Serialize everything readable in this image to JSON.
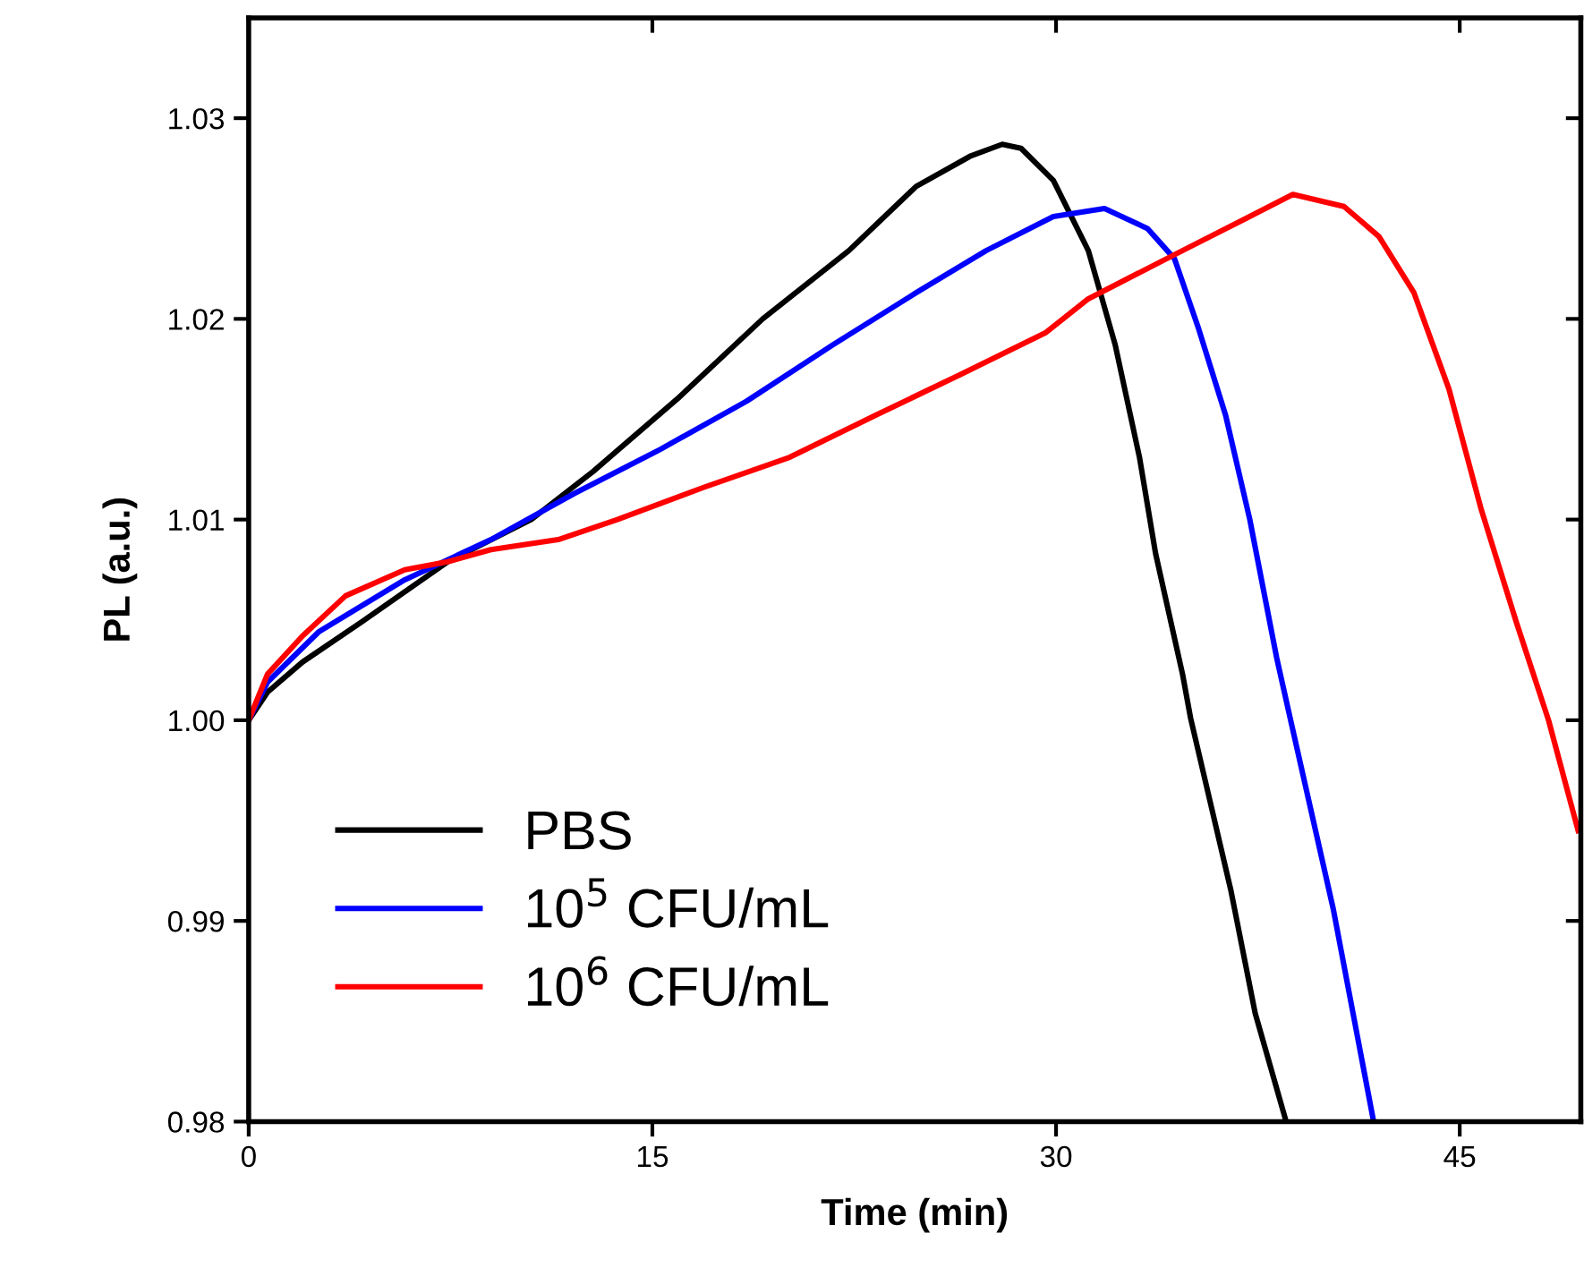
{
  "chart_data": {
    "type": "line",
    "xlabel": "Time (min)",
    "ylabel": "PL (a.u.)",
    "xlim": [
      0,
      49.5
    ],
    "xticks": [
      0,
      15,
      30,
      45
    ],
    "ylim": [
      0.98,
      1.035
    ],
    "yticks": [
      0.98,
      0.99,
      {
        "value": 1.0,
        "label": "1.00"
      },
      1.01,
      1.02,
      1.03
    ],
    "grid": false,
    "legend": "bottom left",
    "marker": "none",
    "line_style": "solid",
    "series": [
      {
        "name": "PBS",
        "color": "#000000",
        "x": [
          0,
          0.7,
          2.0,
          4.2,
          7.4,
          10.5,
          12.8,
          16.0,
          19.1,
          22.3,
          24.8,
          26.8,
          28.0,
          28.7,
          29.9,
          31.2,
          32.2,
          33.1,
          33.7,
          34.7,
          35.0,
          36.5,
          37.4,
          38.55
        ],
        "values": [
          1.0,
          1.0014,
          1.0029,
          1.0049,
          1.0079,
          1.01,
          1.0124,
          1.0161,
          1.02,
          1.0234,
          1.0266,
          1.0281,
          1.0287,
          1.0285,
          1.0269,
          1.0234,
          1.0187,
          1.0131,
          1.0083,
          1.0023,
          1.0001,
          0.9915,
          0.9854,
          0.98
        ]
      },
      {
        "name": "10$^{5}$ CFU/mL",
        "color": "#0000ff",
        "x": [
          0,
          0.7,
          2.6,
          5.8,
          9.0,
          12.1,
          15.3,
          18.5,
          21.7,
          24.8,
          27.4,
          29.9,
          31.8,
          33.4,
          34.4,
          35.3,
          36.3,
          37.2,
          38.2,
          38.7,
          40.3,
          41.8
        ],
        "values": [
          1.0,
          1.0019,
          1.0044,
          1.007,
          1.009,
          1.0113,
          1.0135,
          1.0159,
          1.0187,
          1.0213,
          1.0234,
          1.0251,
          1.0255,
          1.0245,
          1.023,
          1.0195,
          1.0152,
          1.01,
          1.0031,
          1.0001,
          0.9906,
          0.98
        ]
      },
      {
        "name": "10$^{6}$ CFU/mL",
        "color": "#ff0000",
        "x": [
          0,
          0.7,
          2.0,
          3.6,
          5.8,
          7.4,
          9.0,
          11.5,
          13.7,
          16.9,
          20.1,
          23.3,
          26.4,
          29.6,
          31.2,
          34.4,
          36.9,
          38.8,
          40.7,
          42.0,
          43.3,
          44.6,
          45.8,
          47.1,
          48.3,
          49.4
        ],
        "values": [
          1.0,
          1.0023,
          1.0042,
          1.0062,
          1.0075,
          1.0079,
          1.0085,
          1.009,
          1.01,
          1.0116,
          1.0131,
          1.0152,
          1.0172,
          1.0193,
          1.021,
          1.0232,
          1.0249,
          1.0262,
          1.0256,
          1.0241,
          1.0213,
          1.0165,
          1.0105,
          1.0049,
          1.0,
          0.9945
        ]
      }
    ]
  }
}
